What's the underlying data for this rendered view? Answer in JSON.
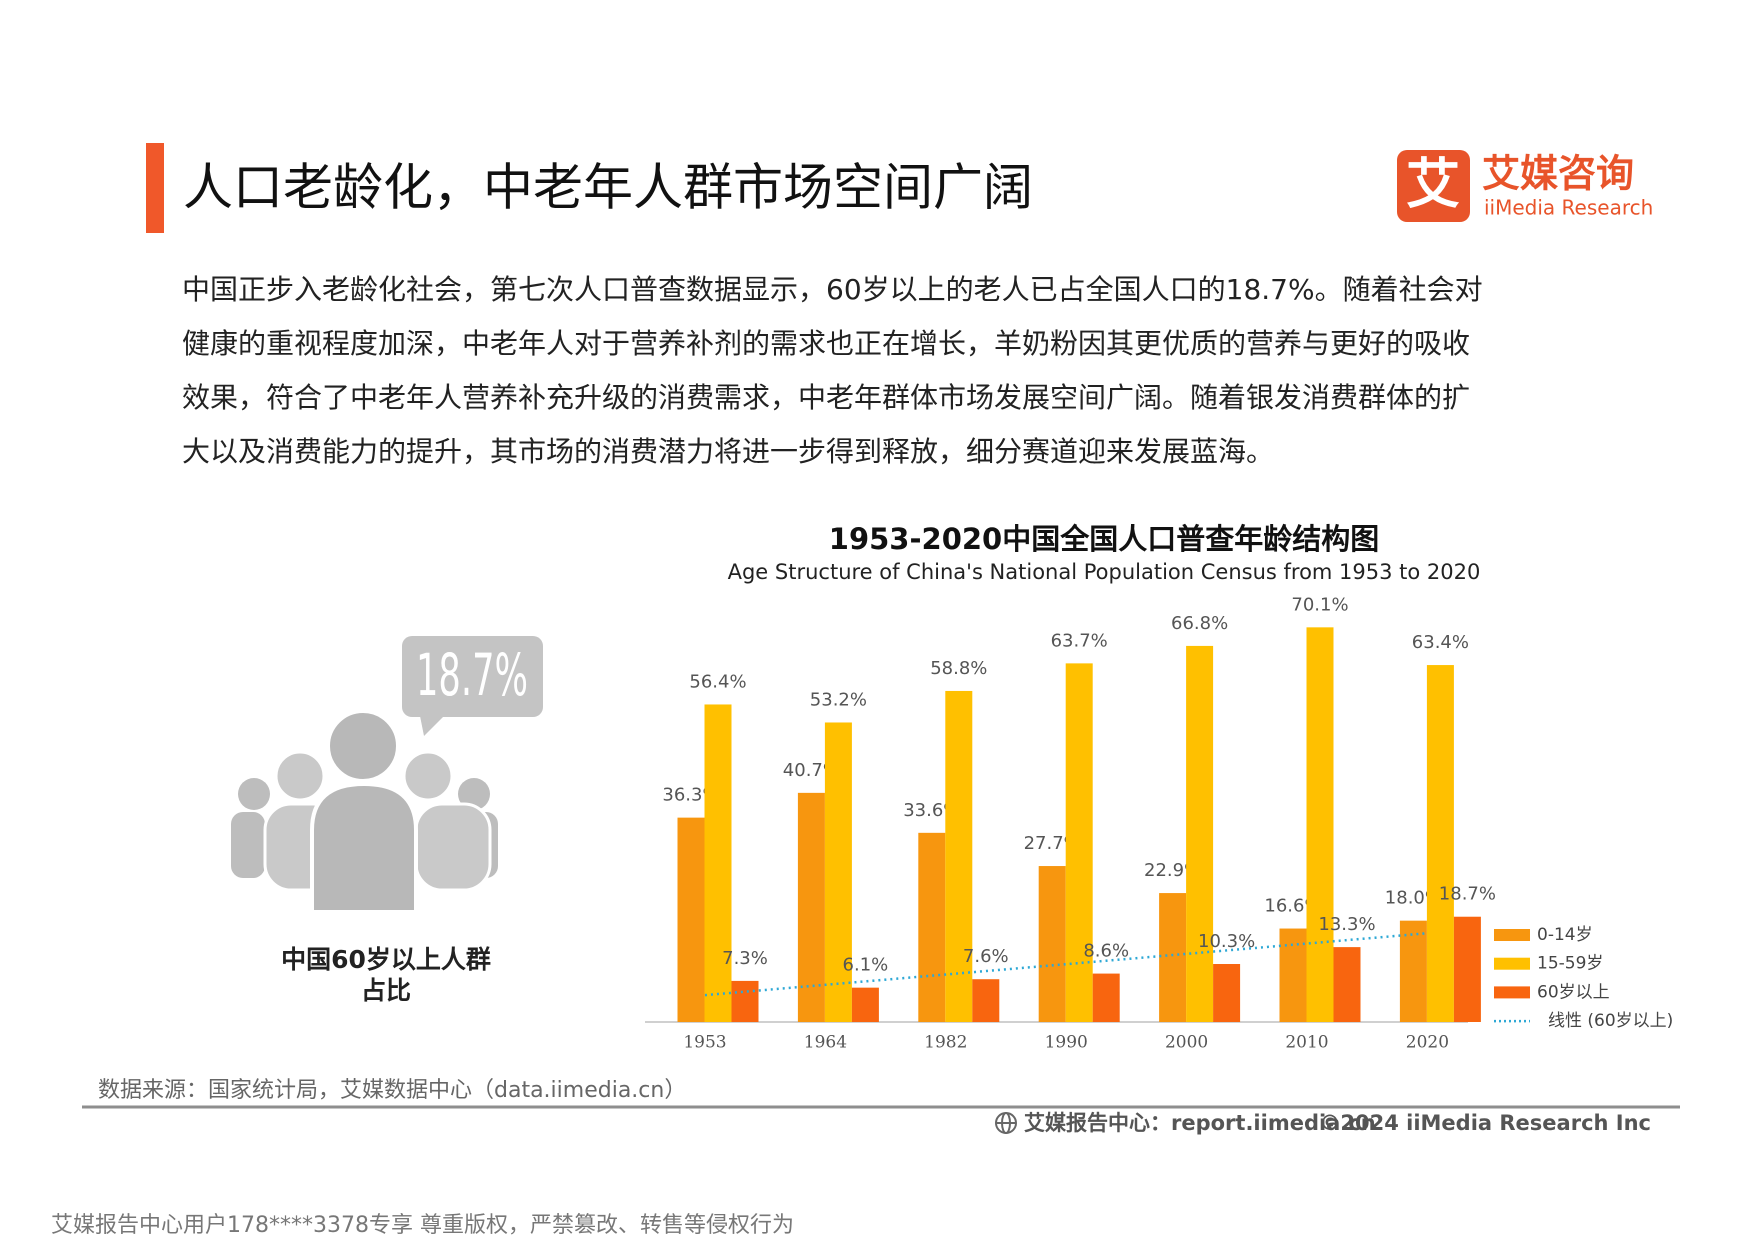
{
  "header": {
    "title": "人口老龄化，中老年人群市场空间广阔"
  },
  "logo": {
    "icon": "艾",
    "name": "艾媒咨询",
    "name_en": "iiMedia Research"
  },
  "paragraph": [
    "中国正步入老龄化社会，第七次人口普查数据显示，60岁以上的老人已占全国人口的18.7%。随着社会对",
    "健康的重视程度加深，中老年人对于营养补剂的需求也正在增长，羊奶粉因其更优质的营养与更好的吸收",
    "效果，符合了中老年人营养补充升级的消费需求，中老年群体市场发展空间广阔。随着银发消费群体的扩",
    "大以及消费能力的提升，其市场的消费潜力将进一步得到释放，细分赛道迎来发展蓝海。"
  ],
  "infographic": {
    "value_label": "18.7%",
    "caption": [
      "中国60岁以上人群",
      "占比"
    ]
  },
  "chart_data": {
    "type": "bar",
    "title": "1953-2020中国全国人口普查年龄结构图",
    "subtitle": "Age Structure of China's National Population Census from 1953 to 2020",
    "categories": [
      "1953",
      "1964",
      "1982",
      "1990",
      "2000",
      "2010",
      "2020"
    ],
    "series": [
      {
        "name": "0-14岁",
        "color": "#f7960f",
        "values": [
          36.3,
          40.7,
          33.6,
          27.7,
          22.9,
          16.6,
          18.0
        ],
        "value_labels": [
          "36.3%",
          "40.7%",
          "33.6%",
          "27.7%",
          "22.9%",
          "16.6%",
          "18.0%"
        ]
      },
      {
        "name": "15-59岁",
        "color": "#ffc000",
        "values": [
          56.4,
          53.2,
          58.8,
          63.7,
          66.8,
          70.1,
          63.4
        ],
        "value_labels": [
          "56.4%",
          "53.2%",
          "58.8%",
          "63.7%",
          "66.8%",
          "70.1%",
          "63.4%"
        ]
      },
      {
        "name": "60岁以上",
        "color": "#f8650f",
        "values": [
          7.3,
          6.1,
          7.6,
          8.6,
          10.3,
          13.3,
          18.7
        ],
        "value_labels": [
          "7.3%",
          "6.1%",
          "7.6%",
          "8.6%",
          "10.3%",
          "13.3%",
          "18.7%"
        ],
        "trendline": {
          "name": "线性 (60岁以上)",
          "color": "#2ea8d5"
        }
      }
    ],
    "legend": "right"
  },
  "footer": {
    "source": "数据来源：国家统计局，艾媒数据中心（data.iimedia.cn）",
    "site": "艾媒报告中心：report.iimedia.cn",
    "copyright": "©2024  iiMedia Research  Inc",
    "watermark": "艾媒报告中心用户178****3378专享 尊重版权，严禁篡改、转售等侵权行为"
  }
}
